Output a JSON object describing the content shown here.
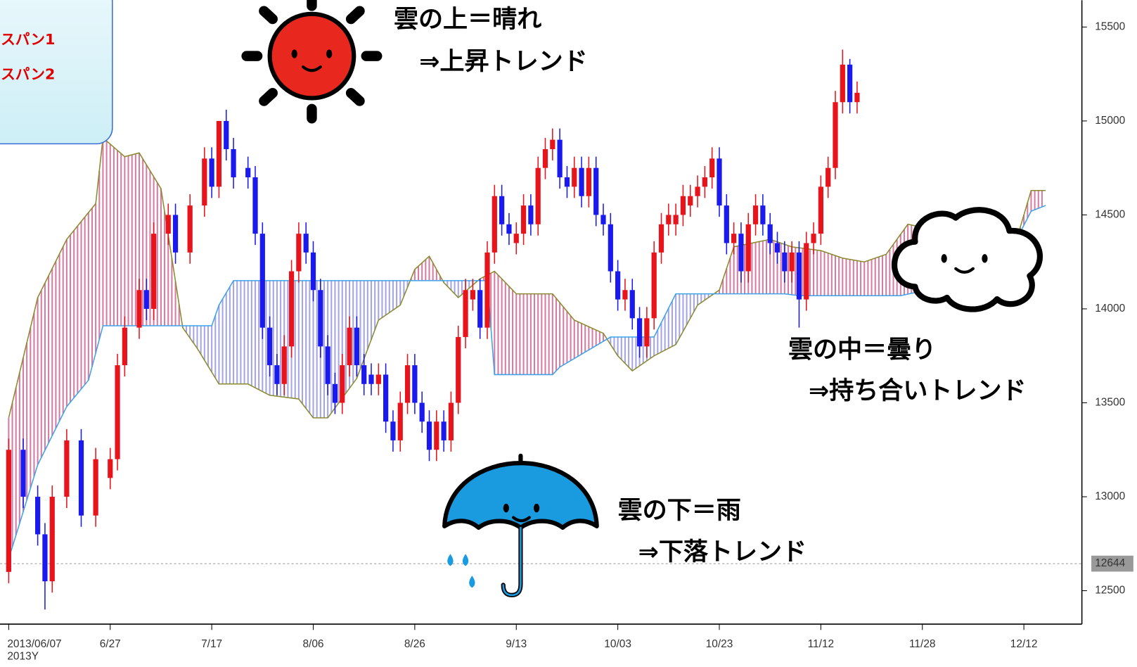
{
  "chart_data": {
    "type": "candlestick",
    "legend_text_color": "#e00000",
    "up_color": "#e8141c",
    "down_color": "#1a1aee",
    "cloud_up_color": "#d77ba3",
    "cloud_down_color": "#a5a5e6",
    "xlim": [
      -1.2,
      147.8
    ],
    "ylim": [
      12322,
      15643
    ],
    "yticks": [
      12500,
      13000,
      13500,
      14000,
      14500,
      15000,
      15500
    ],
    "xticks": [
      {
        "value": 0,
        "label": "2013/06/07"
      },
      {
        "value": 14,
        "label": "6/27"
      },
      {
        "value": 28,
        "label": "7/17"
      },
      {
        "value": 42,
        "label": "8/06"
      },
      {
        "value": 56,
        "label": "8/26"
      },
      {
        "value": 70,
        "label": "9/13"
      },
      {
        "value": 84,
        "label": "10/03"
      },
      {
        "value": 98,
        "label": "10/23"
      },
      {
        "value": 112,
        "label": "11/12"
      },
      {
        "value": 126,
        "label": "11/28"
      },
      {
        "value": 140,
        "label": "12/12"
      }
    ],
    "year_label": "2013Y",
    "price_line": 12644,
    "annotations": [
      "雲の上＝晴れ",
      "⇒上昇トレンド",
      "雲の中＝曇り",
      "⇒持ち合いトレンド",
      "雲の下＝雨",
      "⇒下落トレンド"
    ],
    "x": [
      0,
      2,
      4,
      5,
      6,
      8,
      10,
      12,
      14,
      15,
      16,
      18,
      19,
      20,
      22,
      23,
      25,
      27,
      28,
      29,
      30,
      31,
      33,
      34,
      35,
      36,
      37,
      38,
      39,
      40,
      41,
      42,
      43,
      44,
      45,
      46,
      47,
      48,
      49,
      50,
      51,
      52,
      53,
      54,
      55,
      56,
      57,
      58,
      59,
      60,
      61,
      62,
      63,
      64,
      65,
      66,
      67,
      68,
      69,
      70,
      71,
      72,
      73,
      74,
      75,
      76,
      77,
      78,
      79,
      80,
      81,
      82,
      83,
      84,
      85,
      86,
      87,
      88,
      89,
      90,
      91,
      92,
      93,
      94,
      95,
      96,
      97,
      98,
      99,
      100,
      101,
      102,
      103,
      104,
      105,
      106,
      107,
      108,
      109,
      110,
      111,
      112,
      113,
      114,
      115,
      116,
      117
    ],
    "candles": [
      [
        12600,
        13310,
        12540,
        13250
      ],
      [
        13250,
        13310,
        12940,
        13000
      ],
      [
        13000,
        13060,
        12740,
        12800
      ],
      [
        12800,
        12860,
        12400,
        12550
      ],
      [
        12550,
        13060,
        12490,
        13000
      ],
      [
        13000,
        13360,
        12940,
        13300
      ],
      [
        13300,
        13360,
        12840,
        12900
      ],
      [
        12900,
        13260,
        12840,
        13200
      ],
      [
        13100,
        13260,
        13040,
        13200
      ],
      [
        13200,
        13760,
        13140,
        13700
      ],
      [
        13700,
        13960,
        13640,
        13900
      ],
      [
        13900,
        14160,
        13840,
        14100
      ],
      [
        14100,
        14160,
        13940,
        14000
      ],
      [
        14000,
        14460,
        13940,
        14400
      ],
      [
        14400,
        14560,
        14340,
        14500
      ],
      [
        14500,
        14560,
        14240,
        14300
      ],
      [
        14300,
        14610,
        14240,
        14550
      ],
      [
        14550,
        14860,
        14490,
        14800
      ],
      [
        14800,
        14860,
        14590,
        14650
      ],
      [
        14650,
        15000,
        14590,
        15000
      ],
      [
        15000,
        15060,
        14790,
        14850
      ],
      [
        14850,
        14910,
        14640,
        14700
      ],
      [
        14750,
        14810,
        14640,
        14700
      ],
      [
        14700,
        14760,
        14340,
        14400
      ],
      [
        14400,
        14460,
        13840,
        13900
      ],
      [
        13900,
        13960,
        13640,
        13700
      ],
      [
        13700,
        13760,
        13540,
        13600
      ],
      [
        13600,
        13860,
        13540,
        13800
      ],
      [
        13800,
        14260,
        13740,
        14200
      ],
      [
        14200,
        14460,
        14140,
        14400
      ],
      [
        14400,
        14460,
        14240,
        14300
      ],
      [
        14300,
        14360,
        14040,
        14100
      ],
      [
        14100,
        14160,
        13740,
        13800
      ],
      [
        13800,
        13860,
        13540,
        13600
      ],
      [
        13600,
        13660,
        13440,
        13500
      ],
      [
        13500,
        13760,
        13440,
        13700
      ],
      [
        13700,
        13960,
        13640,
        13900
      ],
      [
        13900,
        13960,
        13640,
        13700
      ],
      [
        13700,
        13760,
        13540,
        13600
      ],
      [
        13650,
        13710,
        13540,
        13600
      ],
      [
        13600,
        13710,
        13540,
        13650
      ],
      [
        13650,
        13710,
        13340,
        13400
      ],
      [
        13400,
        13460,
        13240,
        13300
      ],
      [
        13300,
        13560,
        13240,
        13500
      ],
      [
        13500,
        13760,
        13440,
        13700
      ],
      [
        13700,
        13760,
        13440,
        13500
      ],
      [
        13500,
        13560,
        13340,
        13400
      ],
      [
        13400,
        13460,
        13190,
        13250
      ],
      [
        13250,
        13460,
        13190,
        13400
      ],
      [
        13400,
        13460,
        13240,
        13300
      ],
      [
        13300,
        13560,
        13240,
        13500
      ],
      [
        13500,
        13910,
        13440,
        13850
      ],
      [
        13850,
        14160,
        13790,
        14100
      ],
      [
        14050,
        14160,
        13990,
        14100
      ],
      [
        14100,
        14160,
        13840,
        13900
      ],
      [
        13900,
        14360,
        13840,
        14300
      ],
      [
        14300,
        14660,
        14240,
        14600
      ],
      [
        14600,
        14660,
        14390,
        14450
      ],
      [
        14450,
        14510,
        14340,
        14400
      ],
      [
        14350,
        14460,
        14290,
        14400
      ],
      [
        14400,
        14610,
        14340,
        14550
      ],
      [
        14550,
        14610,
        14390,
        14450
      ],
      [
        14450,
        14810,
        14390,
        14750
      ],
      [
        14750,
        14910,
        14690,
        14850
      ],
      [
        14850,
        14960,
        14790,
        14900
      ],
      [
        14900,
        14960,
        14640,
        14700
      ],
      [
        14700,
        14760,
        14590,
        14650
      ],
      [
        14650,
        14810,
        14590,
        14750
      ],
      [
        14750,
        14810,
        14540,
        14600
      ],
      [
        14600,
        14810,
        14540,
        14750
      ],
      [
        14750,
        14810,
        14440,
        14500
      ],
      [
        14500,
        14560,
        14390,
        14450
      ],
      [
        14450,
        14510,
        14140,
        14200
      ],
      [
        14200,
        14260,
        13990,
        14050
      ],
      [
        14050,
        14160,
        13990,
        14100
      ],
      [
        14100,
        14160,
        13890,
        13950
      ],
      [
        13950,
        14010,
        13740,
        13800
      ],
      [
        13800,
        14010,
        13740,
        13950
      ],
      [
        13950,
        14360,
        13890,
        14300
      ],
      [
        14300,
        14510,
        14240,
        14450
      ],
      [
        14450,
        14560,
        14390,
        14500
      ],
      [
        14450,
        14560,
        14390,
        14500
      ],
      [
        14500,
        14660,
        14440,
        14600
      ],
      [
        14550,
        14660,
        14490,
        14600
      ],
      [
        14600,
        14710,
        14540,
        14650
      ],
      [
        14650,
        14760,
        14590,
        14700
      ],
      [
        14700,
        14860,
        14640,
        14800
      ],
      [
        14800,
        14860,
        14490,
        14550
      ],
      [
        14550,
        14610,
        14290,
        14350
      ],
      [
        14350,
        14460,
        14290,
        14400
      ],
      [
        14400,
        14460,
        14140,
        14200
      ],
      [
        14200,
        14510,
        14140,
        14450
      ],
      [
        14450,
        14610,
        14390,
        14550
      ],
      [
        14550,
        14610,
        14390,
        14450
      ],
      [
        14450,
        14510,
        14290,
        14350
      ],
      [
        14350,
        14410,
        14240,
        14300
      ],
      [
        14300,
        14360,
        14140,
        14200
      ],
      [
        14200,
        14360,
        14140,
        14300
      ],
      [
        14300,
        14360,
        13900,
        14050
      ],
      [
        14050,
        14410,
        13990,
        14350
      ],
      [
        14350,
        14460,
        14290,
        14400
      ],
      [
        14400,
        14710,
        14340,
        14650
      ],
      [
        14650,
        14810,
        14590,
        14750
      ],
      [
        14750,
        15160,
        14690,
        15100
      ],
      [
        15100,
        15380,
        15040,
        15300
      ],
      [
        15300,
        15330,
        15040,
        15100
      ],
      [
        15100,
        15210,
        15040,
        15150
      ]
    ],
    "series": [
      {
        "name": "スパン1",
        "color": "#8a8a2e",
        "x": [
          0,
          4,
          8,
          12,
          13,
          16,
          18,
          21,
          24,
          26,
          29,
          33,
          36,
          40,
          42,
          44,
          48,
          51,
          54,
          56,
          58,
          60,
          62,
          65,
          67,
          70,
          75,
          78,
          82,
          84,
          86,
          89,
          92,
          95,
          98,
          100,
          105,
          108,
          112,
          115,
          118,
          121,
          124,
          129,
          135,
          139,
          141,
          143
        ],
        "values": [
          13420,
          14060,
          14370,
          14560,
          14910,
          14810,
          14830,
          14640,
          13900,
          13790,
          13600,
          13600,
          13540,
          13520,
          13420,
          13420,
          13630,
          13940,
          14020,
          14210,
          14280,
          14140,
          14060,
          14160,
          14200,
          14080,
          14080,
          13940,
          13870,
          13750,
          13670,
          13750,
          13810,
          14020,
          14100,
          14330,
          14370,
          14330,
          14310,
          14270,
          14250,
          14290,
          14450,
          14410,
          14370,
          14370,
          14630,
          14630
        ]
      },
      {
        "name": "スパン2",
        "color": "#3ea2ea",
        "x": [
          0,
          4,
          8,
          11,
          13,
          28,
          29,
          31,
          63,
          66,
          67,
          75,
          76,
          83,
          89,
          92,
          98,
          107,
          109,
          123,
          129,
          139,
          141,
          143
        ],
        "values": [
          12670,
          13170,
          13480,
          13620,
          13910,
          13910,
          14020,
          14150,
          14150,
          14150,
          13650,
          13650,
          13690,
          13850,
          13850,
          14080,
          14080,
          14080,
          14070,
          14070,
          14120,
          14370,
          14520,
          14550
        ]
      }
    ]
  }
}
